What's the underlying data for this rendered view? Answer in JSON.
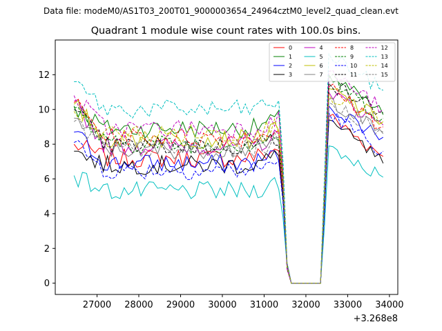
{
  "chart_data": {
    "type": "line",
    "suptitle": "Data file: modeM0/AS1T03_200T01_9000003654_24964cztM0_level2_quad_clean.evt",
    "title": "Quadrant 1 module wise count rates with 100.0s bins.",
    "xlabel": "",
    "ylabel": "",
    "x_offset_label": "+3.268e8",
    "xlim": [
      26000,
      34200
    ],
    "ylim": [
      -0.65,
      14.0
    ],
    "xticks": [
      27000,
      28000,
      29000,
      30000,
      31000,
      32000,
      33000,
      34000
    ],
    "yticks": [
      0,
      2,
      4,
      6,
      8,
      10,
      12
    ],
    "legend_position": "top-right",
    "x_start": 26450,
    "x_step": 100,
    "n_points": 75,
    "gap": {
      "drop_start": 31450,
      "drop_end": 31550,
      "zero_from": 31600,
      "zero_to": 32400,
      "rise_start": 32450,
      "rise_end": 32550
    },
    "series": [
      {
        "name": "0",
        "color": "#ff0000",
        "dash": "solid",
        "base_level": 7.2,
        "end_value": 7.3,
        "first_value": 8.0,
        "peak_after_gap": 9.6
      },
      {
        "name": "1",
        "color": "#008000",
        "dash": "solid",
        "base_level": 8.9,
        "end_value": 9.7,
        "first_value": 10.2,
        "peak_after_gap": 12.0
      },
      {
        "name": "2",
        "color": "#0000ff",
        "dash": "solid",
        "base_level": 6.9,
        "end_value": 8.4,
        "first_value": 8.7,
        "peak_after_gap": 10.2
      },
      {
        "name": "3",
        "color": "#000000",
        "dash": "solid",
        "base_level": 6.8,
        "end_value": 6.9,
        "first_value": 7.6,
        "peak_after_gap": 9.4
      },
      {
        "name": "4",
        "color": "#bf00bf",
        "dash": "solid",
        "base_level": 7.9,
        "end_value": 9.1,
        "first_value": 10.5,
        "peak_after_gap": 11.0
      },
      {
        "name": "5",
        "color": "#00bfbf",
        "dash": "solid",
        "base_level": 5.3,
        "end_value": 6.1,
        "first_value": 6.2,
        "peak_after_gap": 7.9
      },
      {
        "name": "6",
        "color": "#bfbf00",
        "dash": "solid",
        "base_level": 8.3,
        "end_value": 9.3,
        "first_value": 10.3,
        "peak_after_gap": 11.2
      },
      {
        "name": "7",
        "color": "#808080",
        "dash": "solid",
        "base_level": 7.7,
        "end_value": 8.6,
        "first_value": 9.5,
        "peak_after_gap": 10.6
      },
      {
        "name": "8",
        "color": "#ff0000",
        "dash": "dashed",
        "base_level": 8.4,
        "end_value": 9.0,
        "first_value": 10.4,
        "peak_after_gap": 11.3
      },
      {
        "name": "9",
        "color": "#008000",
        "dash": "dashed",
        "base_level": 8.0,
        "end_value": 9.5,
        "first_value": 10.1,
        "peak_after_gap": 11.8
      },
      {
        "name": "10",
        "color": "#0000ff",
        "dash": "dashed",
        "base_level": 6.5,
        "end_value": 7.6,
        "first_value": 8.1,
        "peak_after_gap": 9.8
      },
      {
        "name": "11",
        "color": "#000000",
        "dash": "dashed",
        "base_level": 7.9,
        "end_value": 9.8,
        "first_value": 10.0,
        "peak_after_gap": 11.5
      },
      {
        "name": "12",
        "color": "#bf00bf",
        "dash": "dashed",
        "base_level": 8.9,
        "end_value": 10.0,
        "first_value": 10.8,
        "peak_after_gap": 12.2
      },
      {
        "name": "13",
        "color": "#00bfbf",
        "dash": "dashed",
        "base_level": 10.0,
        "end_value": 11.1,
        "first_value": 11.6,
        "peak_after_gap": 13.2
      },
      {
        "name": "14",
        "color": "#bfbf00",
        "dash": "dashed",
        "base_level": 8.6,
        "end_value": 9.2,
        "first_value": 9.9,
        "peak_after_gap": 10.9
      },
      {
        "name": "15",
        "color": "#808080",
        "dash": "dashed",
        "base_level": 7.7,
        "end_value": 8.7,
        "first_value": 9.3,
        "peak_after_gap": 10.4
      }
    ]
  }
}
